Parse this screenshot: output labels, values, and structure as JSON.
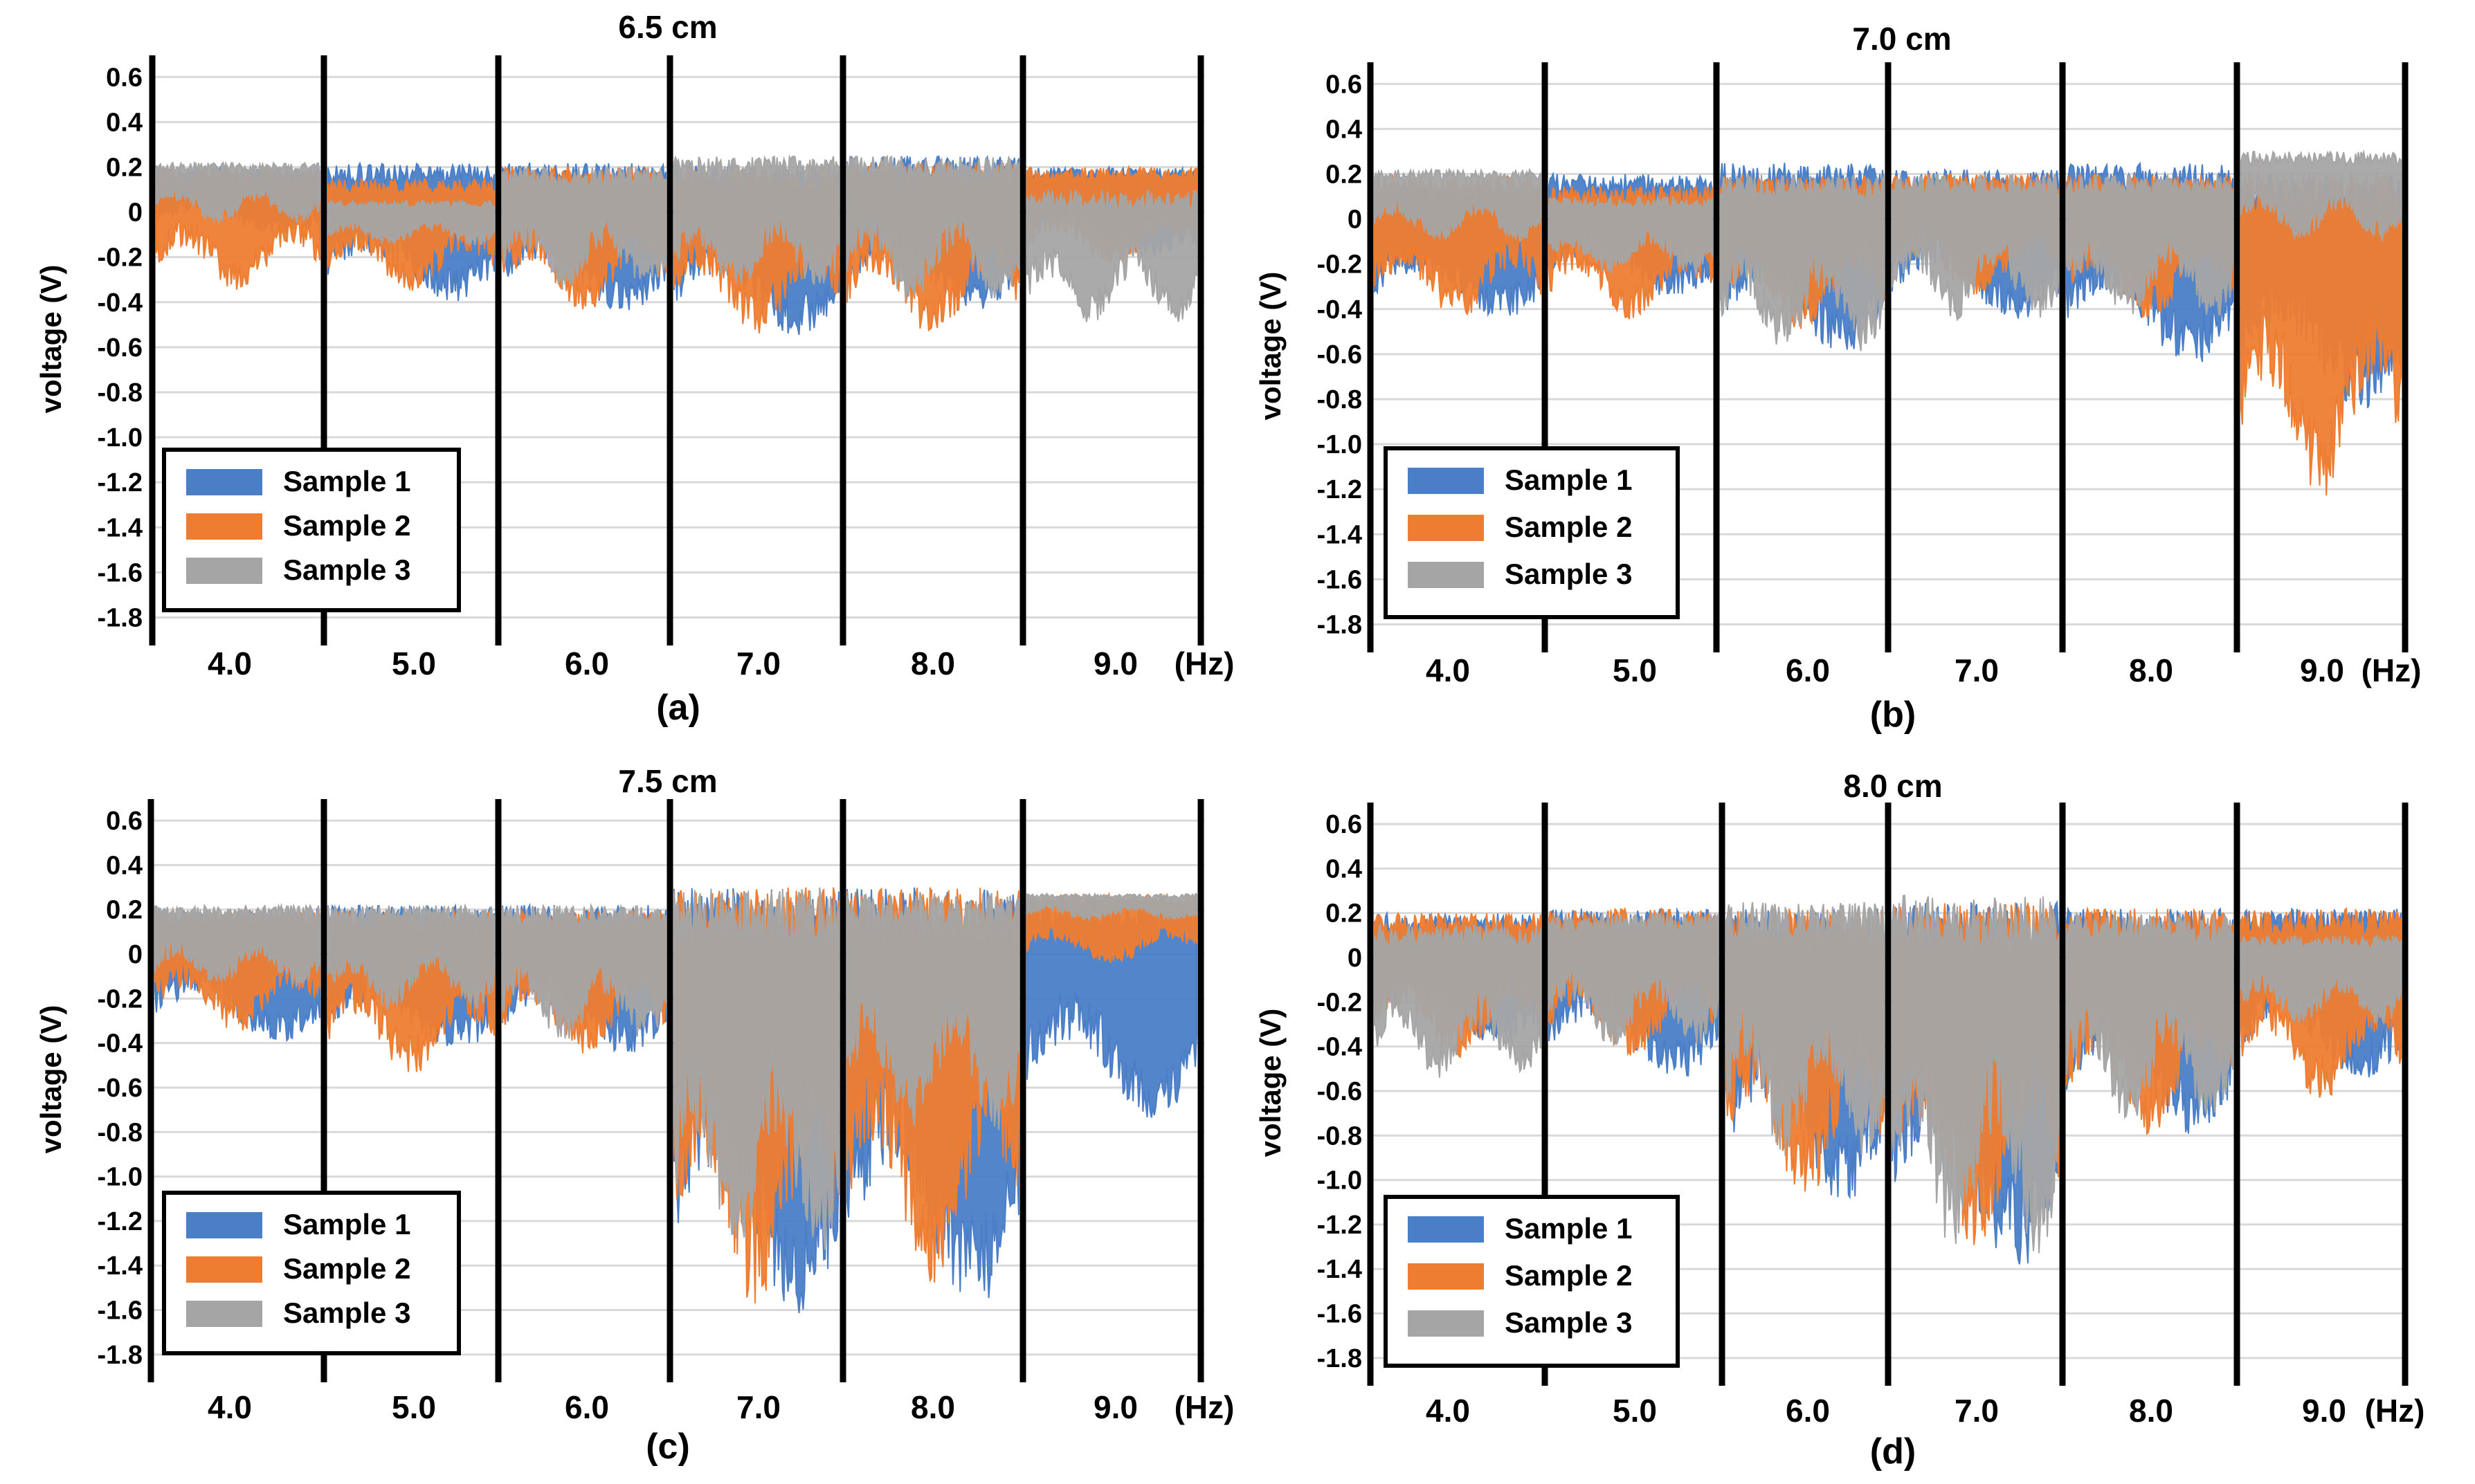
{
  "figure": {
    "series_colors": {
      "Sample 1": "#4a7ec7",
      "Sample 2": "#ee7d31",
      "Sample 3": "#a5a5a5"
    },
    "x_unit_label": "(Hz)"
  },
  "chart_data": [
    {
      "type": "line",
      "panel_label": "(a)",
      "title": "6.5 cm",
      "ylabel": "voltage (V)",
      "xlabel": "(Hz)",
      "ylim": [
        -1.9,
        0.65
      ],
      "yticks": [
        0.6,
        0.4,
        0.2,
        0,
        -0.2,
        -0.4,
        -0.6,
        -0.8,
        -1.0,
        -1.2,
        -1.4,
        -1.6,
        -1.8
      ],
      "ytick_labels": [
        "0.6",
        "0.4",
        "0.2",
        "0",
        "-0.2",
        "-0.4",
        "-0.6",
        "-0.8",
        "-1.0",
        "-1.2",
        "-1.4",
        "-1.6",
        "-1.8"
      ],
      "categories": [
        "4.0",
        "5.0",
        "6.0",
        "7.0",
        "8.0",
        "9.0"
      ],
      "legend": [
        "Sample 1",
        "Sample 2",
        "Sample 3"
      ],
      "legend_position": "bottom-left",
      "segments": [
        {
          "freq": "4.0",
          "s1": [
            -0.1,
            0.2
          ],
          "s2": [
            -0.35,
            0.2
          ],
          "s3": [
            -0.05,
            0.22
          ]
        },
        {
          "freq": "5.0",
          "s1": [
            -0.4,
            0.22
          ],
          "s2": [
            -0.35,
            0.15
          ],
          "s3": [
            -0.15,
            0.05
          ]
        },
        {
          "freq": "6.0",
          "s1": [
            -0.45,
            0.22
          ],
          "s2": [
            -0.45,
            0.2
          ],
          "s3": [
            -0.35,
            0.2
          ]
        },
        {
          "freq": "7.0",
          "s1": [
            -0.55,
            0.22
          ],
          "s2": [
            -0.55,
            0.2
          ],
          "s3": [
            -0.35,
            0.25
          ]
        },
        {
          "freq": "8.0",
          "s1": [
            -0.45,
            0.25
          ],
          "s2": [
            -0.55,
            0.22
          ],
          "s3": [
            -0.4,
            0.25
          ]
        },
        {
          "freq": "9.0",
          "s1": [
            -0.2,
            0.2
          ],
          "s2": [
            -0.25,
            0.2
          ],
          "s3": [
            -0.5,
            0.1
          ]
        }
      ]
    },
    {
      "type": "line",
      "panel_label": "(b)",
      "title": "7.0 cm",
      "ylabel": "voltage (V)",
      "xlabel": "(Hz)",
      "ylim": [
        -1.9,
        0.65
      ],
      "yticks": [
        0.6,
        0.4,
        0.2,
        0,
        -0.2,
        -0.4,
        -0.6,
        -0.8,
        -1.0,
        -1.2,
        -1.4,
        -1.6,
        -1.8
      ],
      "ytick_labels": [
        "0.6",
        "0.4",
        "0.2",
        "0",
        "-0.2",
        "-0.4",
        "-0.6",
        "-0.8",
        "-1.0",
        "-1.2",
        "-1.4",
        "-1.6",
        "-1.8"
      ],
      "categories": [
        "4.0",
        "5.0",
        "6.0",
        "7.0",
        "8.0",
        "9.0"
      ],
      "legend": [
        "Sample 1",
        "Sample 2",
        "Sample 3"
      ],
      "legend_position": "bottom-left",
      "segments": [
        {
          "freq": "4.0",
          "s1": [
            -0.45,
            0.15
          ],
          "s2": [
            -0.45,
            0.2
          ],
          "s3": [
            -0.1,
            0.22
          ]
        },
        {
          "freq": "5.0",
          "s1": [
            -0.35,
            0.2
          ],
          "s2": [
            -0.45,
            0.15
          ],
          "s3": [
            -0.25,
            0.1
          ]
        },
        {
          "freq": "6.0",
          "s1": [
            -0.6,
            0.25
          ],
          "s2": [
            -0.5,
            0.2
          ],
          "s3": [
            -0.6,
            0.2
          ]
        },
        {
          "freq": "7.0",
          "s1": [
            -0.45,
            0.22
          ],
          "s2": [
            -0.35,
            0.2
          ],
          "s3": [
            -0.45,
            0.2
          ]
        },
        {
          "freq": "8.0",
          "s1": [
            -0.65,
            0.25
          ],
          "s2": [
            -0.45,
            0.2
          ],
          "s3": [
            -0.45,
            0.2
          ]
        },
        {
          "freq": "9.0",
          "s1": [
            -0.85,
            0.2
          ],
          "s2": [
            -1.25,
            0.22
          ],
          "s3": [
            -0.1,
            0.3
          ]
        }
      ]
    },
    {
      "type": "line",
      "panel_label": "(c)",
      "title": "7.5 cm",
      "ylabel": "voltage (V)",
      "xlabel": "(Hz)",
      "ylim": [
        -1.9,
        0.65
      ],
      "yticks": [
        0.6,
        0.4,
        0.2,
        0,
        -0.2,
        -0.4,
        -0.6,
        -0.8,
        -1.0,
        -1.2,
        -1.4,
        -1.6,
        -1.8
      ],
      "ytick_labels": [
        "0.6",
        "0.4",
        "0.2",
        "0",
        "-0.2",
        "-0.4",
        "-0.6",
        "-0.8",
        "-1.0",
        "-1.2",
        "-1.4",
        "-1.6",
        "-1.8"
      ],
      "categories": [
        "4.0",
        "5.0",
        "6.0",
        "7.0",
        "8.0",
        "9.0"
      ],
      "legend": [
        "Sample 1",
        "Sample 2",
        "Sample 3"
      ],
      "legend_position": "bottom-left",
      "segments": [
        {
          "freq": "4.0",
          "s1": [
            -0.4,
            0.2
          ],
          "s2": [
            -0.35,
            0.2
          ],
          "s3": [
            -0.15,
            0.22
          ]
        },
        {
          "freq": "5.0",
          "s1": [
            -0.45,
            0.22
          ],
          "s2": [
            -0.55,
            0.2
          ],
          "s3": [
            -0.25,
            0.22
          ]
        },
        {
          "freq": "6.0",
          "s1": [
            -0.45,
            0.22
          ],
          "s2": [
            -0.45,
            0.2
          ],
          "s3": [
            -0.4,
            0.22
          ]
        },
        {
          "freq": "7.0",
          "s1": [
            -1.65,
            0.3
          ],
          "s2": [
            -1.6,
            0.3
          ],
          "s3": [
            -1.4,
            0.3
          ]
        },
        {
          "freq": "8.0",
          "s1": [
            -1.65,
            0.3
          ],
          "s2": [
            -1.5,
            0.3
          ],
          "s3": [
            -0.8,
            0.28
          ]
        },
        {
          "freq": "9.0",
          "s1": [
            -0.75,
            0.25
          ],
          "s2": [
            -0.05,
            0.27
          ],
          "s3": [
            0.15,
            0.27
          ]
        }
      ]
    },
    {
      "type": "line",
      "panel_label": "(d)",
      "title": "8.0 cm",
      "ylabel": "voltage (V)",
      "xlabel": "(Hz)",
      "ylim": [
        -1.9,
        0.65
      ],
      "yticks": [
        0.6,
        0.4,
        0.2,
        0,
        -0.2,
        -0.4,
        -0.6,
        -0.8,
        -1.0,
        -1.2,
        -1.4,
        -1.6,
        -1.8
      ],
      "ytick_labels": [
        "0.6",
        "0.4",
        "0.2",
        "0",
        "-0.2",
        "-0.4",
        "-0.6",
        "-0.8",
        "-1.0",
        "-1.2",
        "-1.4",
        "-1.6",
        "-1.8"
      ],
      "categories": [
        "4.0",
        "5.0",
        "6.0",
        "7.0",
        "8.0",
        "9.0"
      ],
      "legend": [
        "Sample 1",
        "Sample 2",
        "Sample 3"
      ],
      "legend_position": "bottom-left",
      "segments": [
        {
          "freq": "4.0",
          "s1": [
            -0.4,
            0.2
          ],
          "s2": [
            -0.45,
            0.2
          ],
          "s3": [
            -0.55,
            0.15
          ]
        },
        {
          "freq": "5.0",
          "s1": [
            -0.55,
            0.22
          ],
          "s2": [
            -0.45,
            0.22
          ],
          "s3": [
            -0.4,
            0.2
          ]
        },
        {
          "freq": "6.0",
          "s1": [
            -1.1,
            0.22
          ],
          "s2": [
            -1.1,
            0.22
          ],
          "s3": [
            -0.9,
            0.25
          ]
        },
        {
          "freq": "7.0",
          "s1": [
            -1.4,
            0.25
          ],
          "s2": [
            -1.3,
            0.25
          ],
          "s3": [
            -1.35,
            0.28
          ]
        },
        {
          "freq": "8.0",
          "s1": [
            -0.8,
            0.22
          ],
          "s2": [
            -0.8,
            0.22
          ],
          "s3": [
            -0.75,
            0.2
          ]
        },
        {
          "freq": "9.0",
          "s1": [
            -0.55,
            0.22
          ],
          "s2": [
            -0.65,
            0.22
          ],
          "s3": [
            -0.3,
            0.1
          ]
        }
      ]
    }
  ]
}
